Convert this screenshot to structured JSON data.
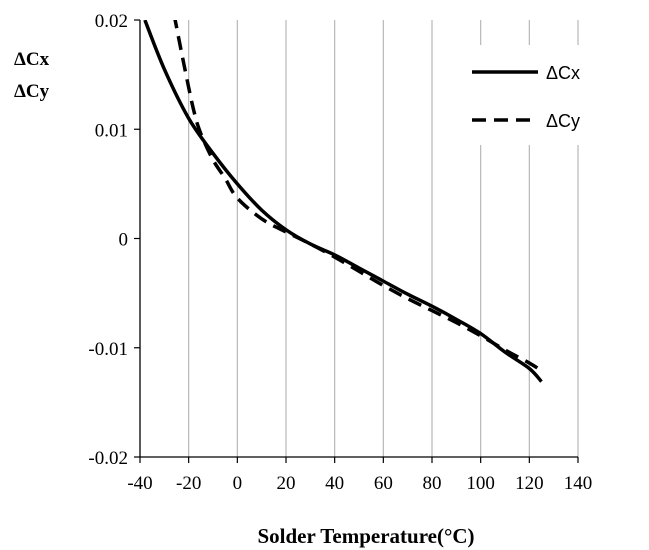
{
  "chart_data": {
    "type": "line",
    "title": "",
    "xlabel": "Solder Temperature(°C)",
    "ylabel_lines": [
      "ΔCx",
      "ΔCy"
    ],
    "xlim": [
      -40,
      140
    ],
    "ylim": [
      -0.02,
      0.02
    ],
    "x_ticks": [
      -40,
      -20,
      0,
      20,
      40,
      60,
      80,
      100,
      120,
      140
    ],
    "x_tick_labels": [
      "-40",
      "-20",
      "0",
      "20",
      "40",
      "60",
      "80",
      "100",
      "120",
      "140"
    ],
    "y_ticks": [
      -0.02,
      -0.01,
      0,
      0.01,
      0.02
    ],
    "y_tick_labels": [
      "-0.02",
      "-0.01",
      "0",
      "0.01",
      "0.02"
    ],
    "grid": "vertical",
    "legend_position": "top-right",
    "series": [
      {
        "name": "ΔCx",
        "style": "solid",
        "color": "#000000",
        "x": [
          -38,
          -30,
          -20,
          -10,
          0,
          10,
          20,
          30,
          40,
          50,
          60,
          70,
          80,
          90,
          100,
          110,
          120,
          125
        ],
        "y": [
          0.02,
          0.0155,
          0.011,
          0.0078,
          0.005,
          0.0026,
          0.0008,
          -0.0005,
          -0.0015,
          -0.0027,
          -0.0039,
          -0.0051,
          -0.0062,
          -0.0074,
          -0.0087,
          -0.0104,
          -0.0119,
          -0.0131
        ]
      },
      {
        "name": "ΔCy",
        "style": "dashed",
        "color": "#000000",
        "x": [
          -26,
          -22,
          -18,
          -15,
          -10,
          -5,
          0,
          10,
          20,
          30,
          40,
          50,
          60,
          70,
          80,
          90,
          100,
          110,
          120,
          125
        ],
        "y": [
          0.0205,
          0.016,
          0.0118,
          0.0096,
          0.0072,
          0.0055,
          0.0037,
          0.0018,
          0.0006,
          -0.0005,
          -0.0017,
          -0.003,
          -0.0043,
          -0.0055,
          -0.0066,
          -0.0077,
          -0.0089,
          -0.0102,
          -0.0114,
          -0.0121
        ]
      }
    ]
  }
}
